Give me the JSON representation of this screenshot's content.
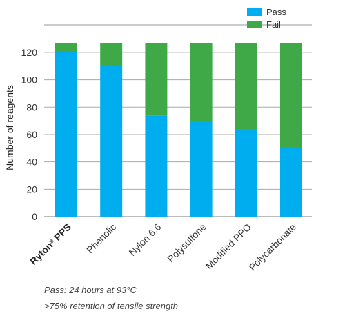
{
  "chart_data": {
    "type": "bar",
    "stacked": true,
    "categories": [
      "Ryton PPS",
      "Phenolic",
      "Nylon 6.6",
      "Polysulfone",
      "Modified PPO",
      "Polycarbonate"
    ],
    "category_trademark": {
      "Ryton PPS": "®"
    },
    "series": [
      {
        "name": "Pass",
        "color": "#00aeef",
        "values": [
          120,
          110,
          74,
          70,
          64,
          50
        ]
      },
      {
        "name": "Fail",
        "color": "#3fa948",
        "values": [
          7,
          17,
          53,
          57,
          63,
          77
        ]
      }
    ],
    "ylabel": "Number of reagents",
    "xlabel": "",
    "ylim": [
      0,
      127
    ],
    "yticks": [
      0,
      20,
      40,
      60,
      80,
      100,
      120
    ],
    "grid": true,
    "legend": {
      "position": "top-right",
      "entries": [
        "Pass",
        "Fail"
      ]
    }
  },
  "footnote": {
    "line1": "Pass: 24 hours at 93°C",
    "line2": ">75% retention of tensile strength"
  }
}
